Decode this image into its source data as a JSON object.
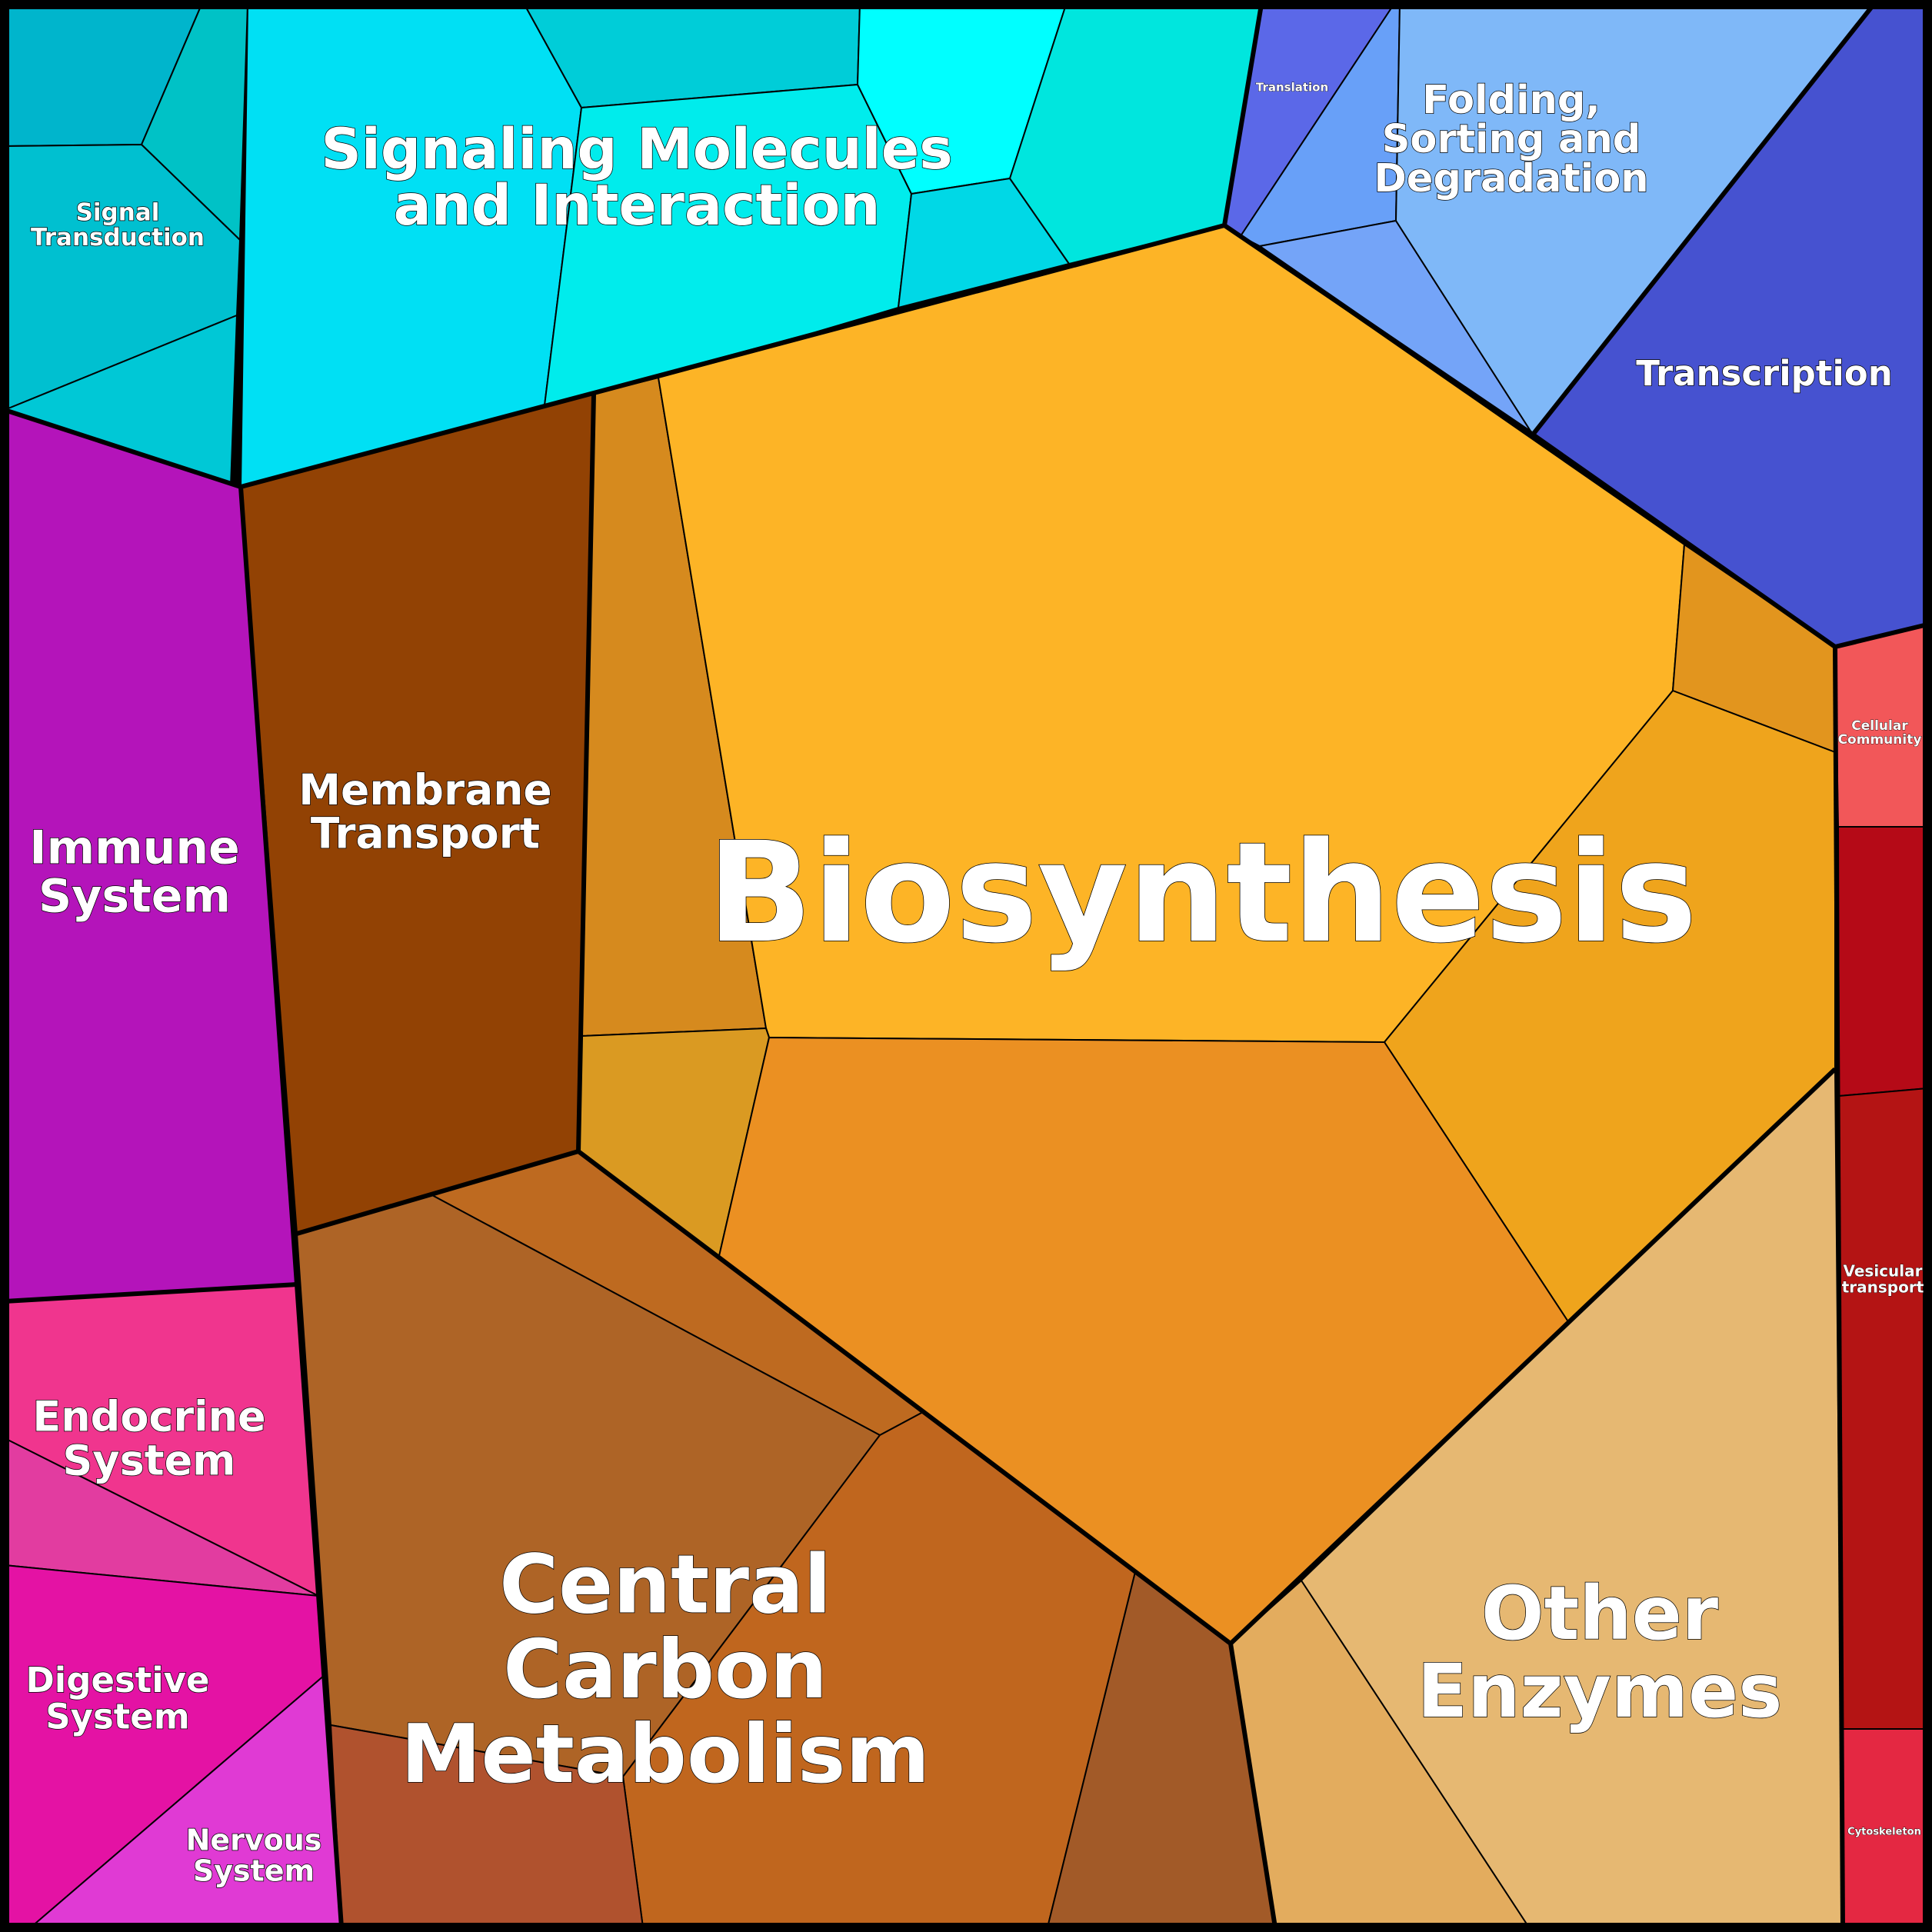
{
  "groups": {
    "signal_transduction": {
      "label": "Signal\nTransduction",
      "color": "#00BFD0"
    },
    "signaling_molecules": {
      "label": "Signaling Molecules\nand Interaction",
      "color": "#00E0F2"
    },
    "translation": {
      "label": "Translation",
      "color": "#5B68E8"
    },
    "folding": {
      "label": "Folding,\nSorting and\nDegradation",
      "color": "#7FB8F8"
    },
    "transcription": {
      "label": "Transcription",
      "color": "#4652D0"
    },
    "immune_system": {
      "label": "Immune\nSystem",
      "color": "#B414BA"
    },
    "membrane_transport": {
      "label": "Membrane\nTransport",
      "color": "#924204"
    },
    "biosynthesis": {
      "label": "Biosynthesis",
      "color": "#FDB426"
    },
    "cellular_community": {
      "label": "Cellular\nCommunity",
      "color": "#F25759"
    },
    "vesicular_transport": {
      "label": "Vesicular\ntransport",
      "color": "#B41414"
    },
    "cytoskeleton": {
      "label": "Cytoskeleton",
      "color": "#E42842"
    },
    "endocrine_system": {
      "label": "Endocrine\nSystem",
      "color": "#F0358E"
    },
    "digestive_system": {
      "label": "Digestive\nSystem",
      "color": "#E412A4"
    },
    "nervous_system": {
      "label": "Nervous\nSystem",
      "color": "#E03AD4"
    },
    "central_carbon": {
      "label": "Central\nCarbon\nMetabolism",
      "color": "#B0662A"
    },
    "other_enzymes": {
      "label": "Other\nEnzymes",
      "color": "#E6B872"
    }
  }
}
